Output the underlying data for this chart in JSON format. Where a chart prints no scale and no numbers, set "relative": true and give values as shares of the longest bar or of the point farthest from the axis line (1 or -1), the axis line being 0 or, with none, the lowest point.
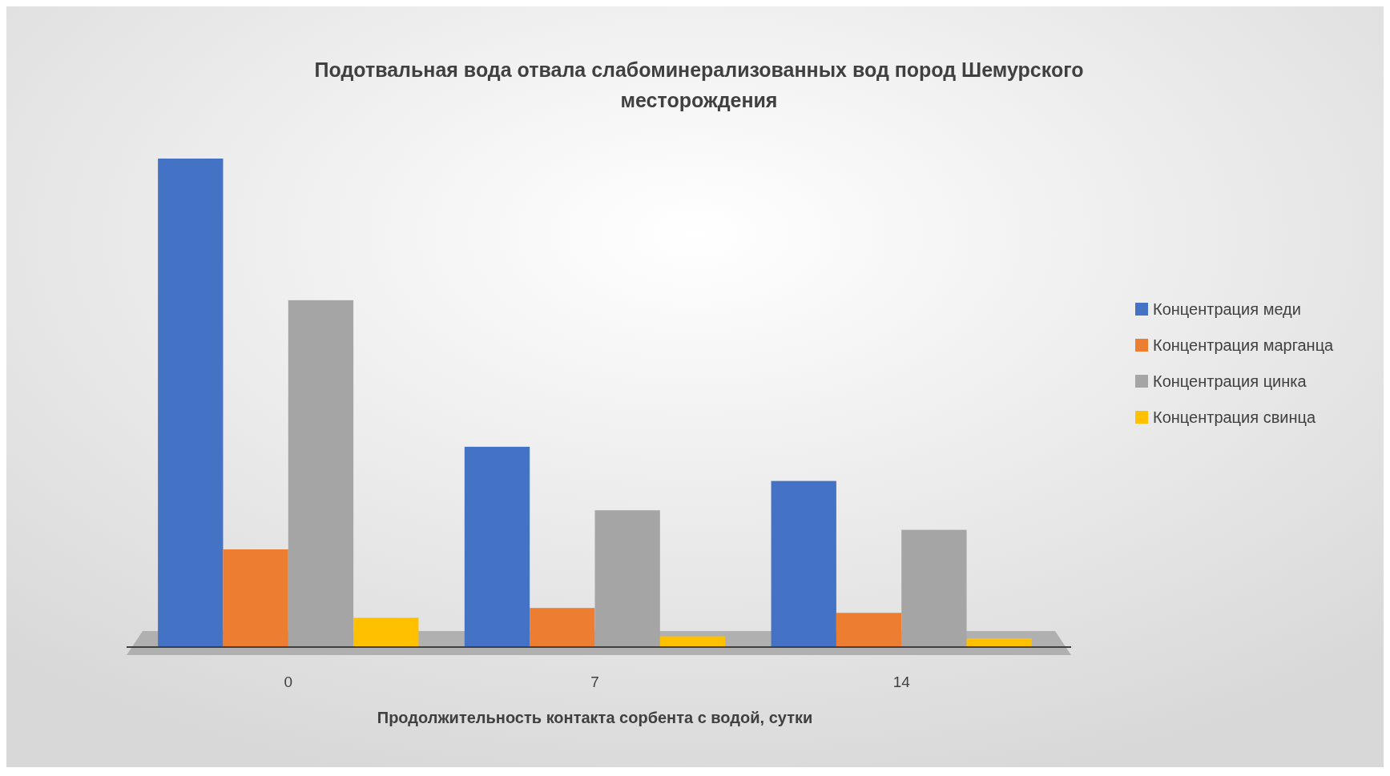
{
  "chart_data": {
    "type": "bar",
    "title": "Подотвальная вода отвала слабоминерализованных вод пород Шемурского месторождения",
    "xlabel": "Продолжительность контакта сорбента с водой, сутки",
    "categories": [
      "0",
      "7",
      "14"
    ],
    "relative": true,
    "legend": "right",
    "series": [
      {
        "name": "Концентрация меди",
        "color": "#4472c4",
        "values": [
          1,
          0.41,
          0.34
        ]
      },
      {
        "name": "Концентрация марганца",
        "color": "#ed7d31",
        "values": [
          0.2,
          0.08,
          0.07
        ]
      },
      {
        "name": "Концентрация цинка",
        "color": "#a5a5a5",
        "values": [
          0.71,
          0.28,
          0.24
        ]
      },
      {
        "name": "Концентрация свинца",
        "color": "#ffc000",
        "values": [
          0.06,
          0.022,
          0.018
        ]
      }
    ]
  }
}
